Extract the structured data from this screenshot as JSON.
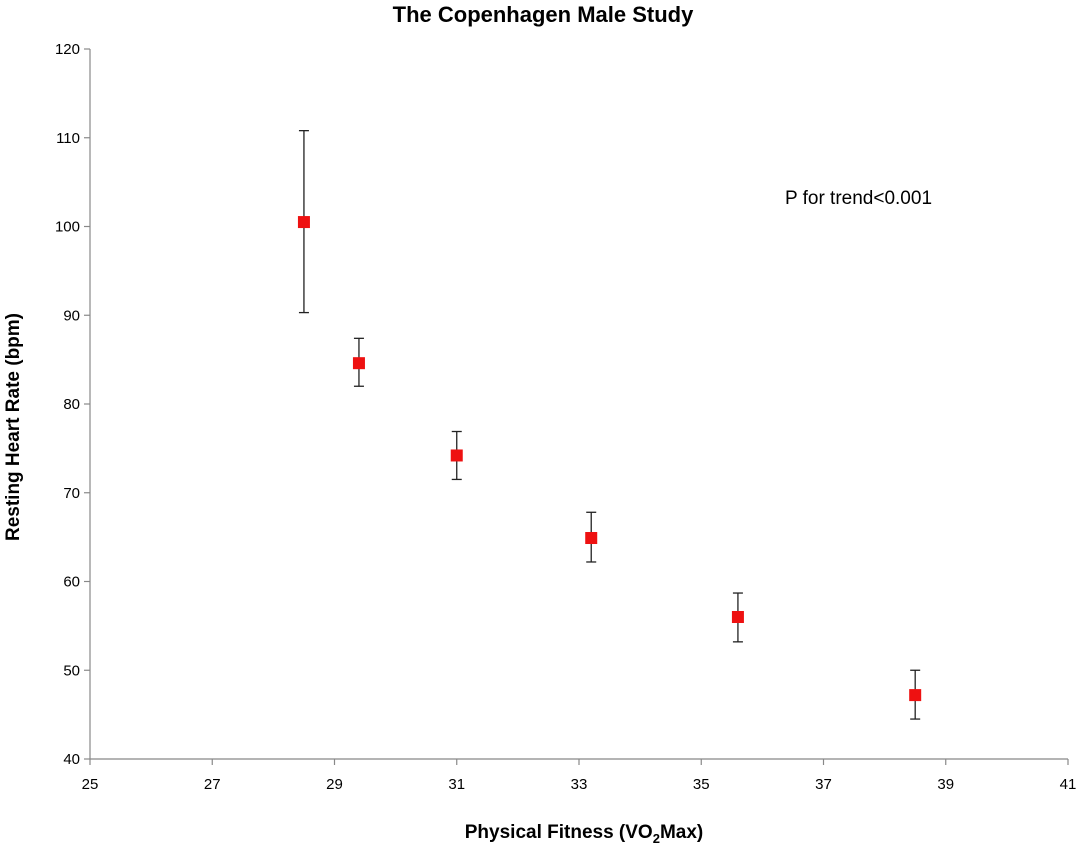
{
  "chart_data": {
    "type": "scatter",
    "title": "The Copenhagen Male Study",
    "xlabel": "Physical Fitness (VO",
    "xlabel_sub": "2",
    "xlabel_tail": "Max)",
    "ylabel": "Resting Heart Rate (bpm)",
    "xlim": [
      25,
      41
    ],
    "ylim": [
      40,
      120
    ],
    "x_ticks": [
      "25",
      "27",
      "29",
      "31",
      "33",
      "35",
      "37",
      "39",
      "41"
    ],
    "y_ticks": [
      "40",
      "50",
      "60",
      "70",
      "80",
      "90",
      "100",
      "110",
      "120"
    ],
    "grid": false,
    "legend": "none",
    "annotation": "P for trend<0.001",
    "marker_color": "#ee1111",
    "points": [
      {
        "x": 28.5,
        "y": 100.5,
        "err_low": 90.3,
        "err_high": 110.8
      },
      {
        "x": 29.4,
        "y": 84.6,
        "err_low": 82.0,
        "err_high": 87.4
      },
      {
        "x": 31.0,
        "y": 74.2,
        "err_low": 71.5,
        "err_high": 76.9
      },
      {
        "x": 33.2,
        "y": 64.9,
        "err_low": 62.2,
        "err_high": 67.8
      },
      {
        "x": 35.6,
        "y": 56.0,
        "err_low": 53.2,
        "err_high": 58.7
      },
      {
        "x": 38.5,
        "y": 47.2,
        "err_low": 44.5,
        "err_high": 50.0
      }
    ]
  }
}
